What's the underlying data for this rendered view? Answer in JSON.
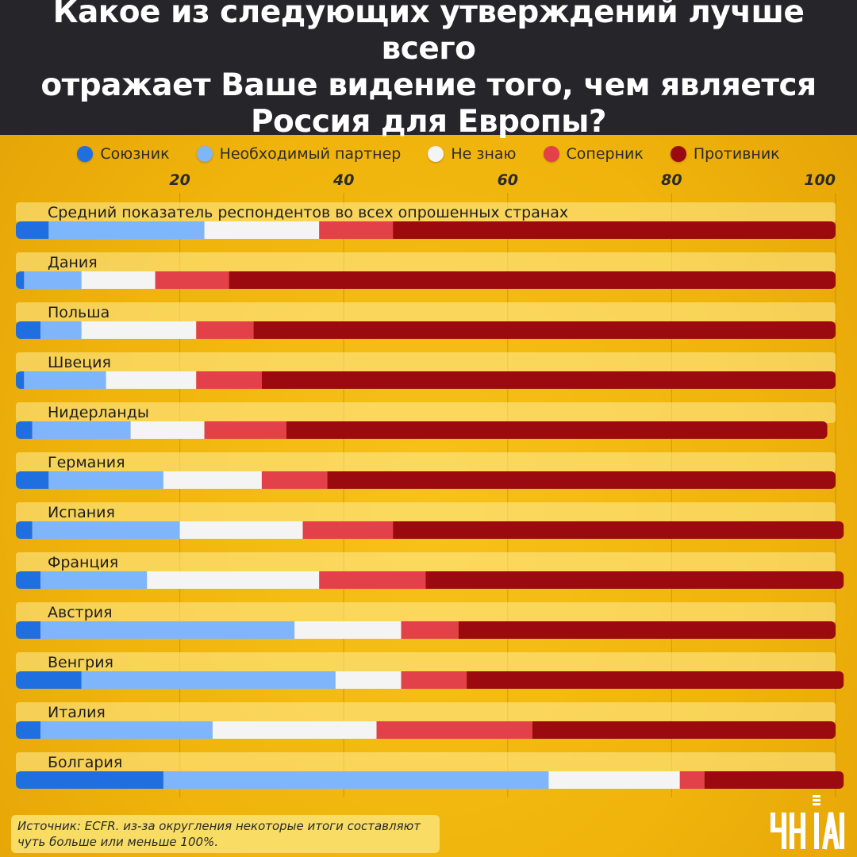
{
  "title": "Какое из следующих утверждений лучше всего\nотражает Ваше видение того, чем является\nРоссия для Европы?",
  "legend": [
    {
      "label": "Союзник",
      "color": "#1f6fe0"
    },
    {
      "label": "Необходимый партнер",
      "color": "#7fb5fb"
    },
    {
      "label": "Не знаю",
      "color": "#f4f4f4"
    },
    {
      "label": "Соперник",
      "color": "#e2414a"
    },
    {
      "label": "Противник",
      "color": "#9b0a0f"
    }
  ],
  "source": "Источник: ECFR. из-за округления некоторые итоги составляют чуть больше или меньше 100%.",
  "logo": {
    "text": "УНІАН"
  },
  "chart_data": {
    "type": "bar",
    "orientation": "horizontal",
    "stacked": true,
    "xlim": [
      0,
      100
    ],
    "xticks": [
      20,
      40,
      60,
      80,
      100
    ],
    "grid": true,
    "legend_position": "top",
    "categories": [
      "Средний показатель респондентов во всех опрошенных странах",
      "Дания",
      "Польша",
      "Швеция",
      "Нидерланды",
      "Германия",
      "Испания",
      "Франция",
      "Австрия",
      "Венгрия",
      "Италия",
      "Болгария"
    ],
    "series": [
      {
        "name": "Союзник",
        "color": "#1f6fe0",
        "values": [
          4,
          1,
          3,
          1,
          2,
          4,
          2,
          3,
          3,
          8,
          3,
          18
        ]
      },
      {
        "name": "Необходимый партнер",
        "color": "#7fb5fb",
        "values": [
          19,
          7,
          5,
          10,
          12,
          14,
          18,
          13,
          31,
          31,
          21,
          47
        ]
      },
      {
        "name": "Не знаю",
        "color": "#f4f4f4",
        "values": [
          14,
          9,
          14,
          11,
          9,
          12,
          15,
          21,
          13,
          8,
          20,
          16
        ]
      },
      {
        "name": "Соперник",
        "color": "#e2414a",
        "values": [
          9,
          9,
          7,
          8,
          10,
          8,
          11,
          13,
          7,
          8,
          19,
          3
        ]
      },
      {
        "name": "Противник",
        "color": "#9b0a0f",
        "values": [
          54,
          74,
          71,
          70,
          66,
          62,
          55,
          51,
          46,
          46,
          37,
          17
        ]
      }
    ]
  }
}
